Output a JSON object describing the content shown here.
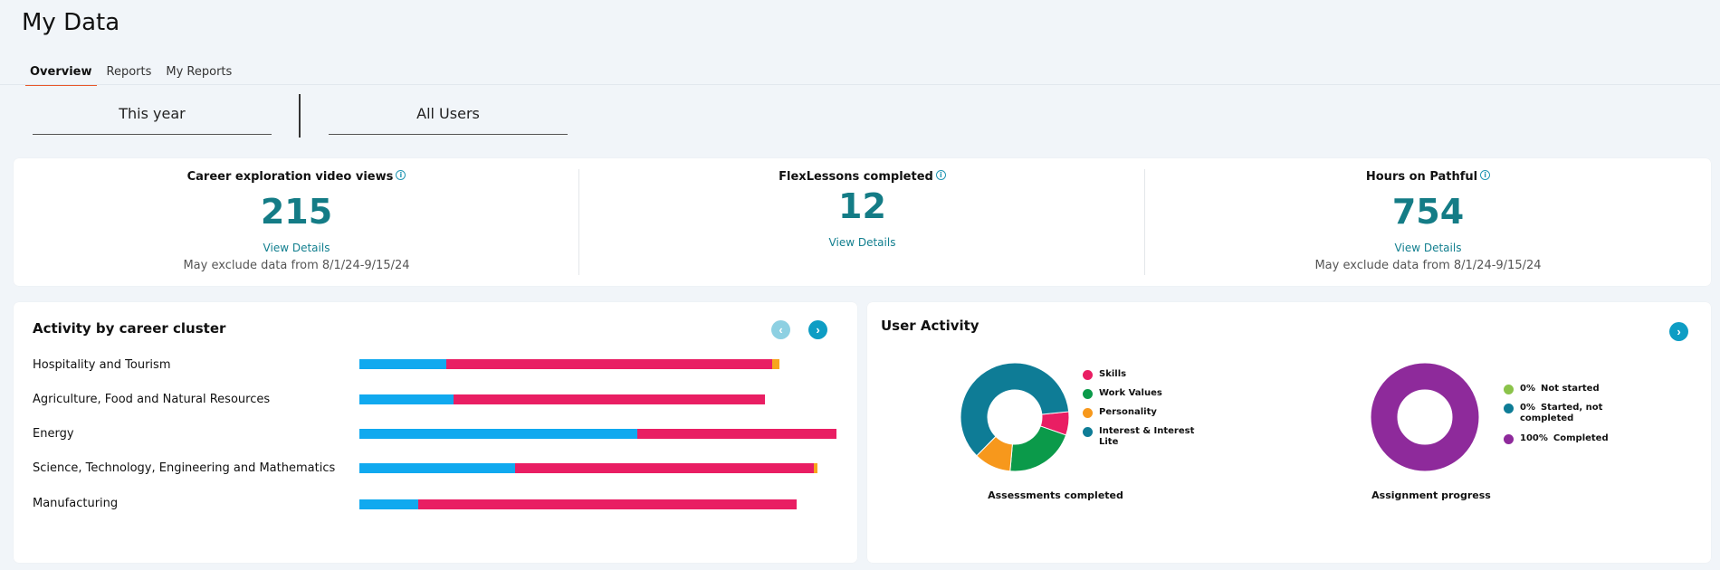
{
  "page": {
    "title": "My Data"
  },
  "tabs": [
    {
      "label": "Overview",
      "active": true
    },
    {
      "label": "Reports",
      "active": false
    },
    {
      "label": "My Reports",
      "active": false
    }
  ],
  "filters": {
    "period": "This year",
    "users": "All Users"
  },
  "stats": [
    {
      "title": "Career exploration video views",
      "value": "215",
      "link": "View Details",
      "note": "May exclude data from 8/1/24-9/15/24"
    },
    {
      "title": "FlexLessons completed",
      "value": "12",
      "link": "View Details",
      "note": ""
    },
    {
      "title": "Hours on Pathful",
      "value": "754",
      "link": "View Details",
      "note": "May exclude data from 8/1/24-9/15/24"
    }
  ],
  "activity": {
    "title": "Activity by career cluster",
    "prev_icon": "chevron-left-icon",
    "next_icon": "chevron-right-icon",
    "colors": [
      "#10a9ef",
      "#e91e63",
      "#f7a51c"
    ],
    "clusters": [
      {
        "label": "Hospitality and Tourism",
        "values": [
          96,
          360,
          8
        ]
      },
      {
        "label": "Agriculture, Food and Natural Resources",
        "values": [
          104,
          344,
          0
        ]
      },
      {
        "label": "Energy",
        "values": [
          307,
          220,
          0
        ]
      },
      {
        "label": "Science, Technology, Engineering and Mathematics",
        "values": [
          172,
          330,
          4
        ]
      },
      {
        "label": "Manufacturing",
        "values": [
          65,
          418,
          0
        ]
      }
    ]
  },
  "user_activity": {
    "title": "User Activity",
    "next_icon": "chevron-right-icon",
    "assessments": {
      "caption": "Assessments completed",
      "slices": [
        {
          "label": "Skills",
          "value": 7,
          "color": "#e91e63"
        },
        {
          "label": "Work Values",
          "value": 21,
          "color": "#0b9a4a"
        },
        {
          "label": "Personality",
          "value": 11,
          "color": "#f7981c"
        },
        {
          "label": "Interest & Interest Lite",
          "value": 61,
          "color": "#0e7c96"
        }
      ]
    },
    "assignments": {
      "caption": "Assignment progress",
      "slices": [
        {
          "label": "Not started",
          "pct": "0%",
          "value": 0,
          "color": "#8bc34a"
        },
        {
          "label": "Started, not completed",
          "pct": "0%",
          "value": 0,
          "color": "#0e7c96"
        },
        {
          "label": "Completed",
          "pct": "100%",
          "value": 100,
          "color": "#8e2a9b"
        }
      ]
    }
  }
}
